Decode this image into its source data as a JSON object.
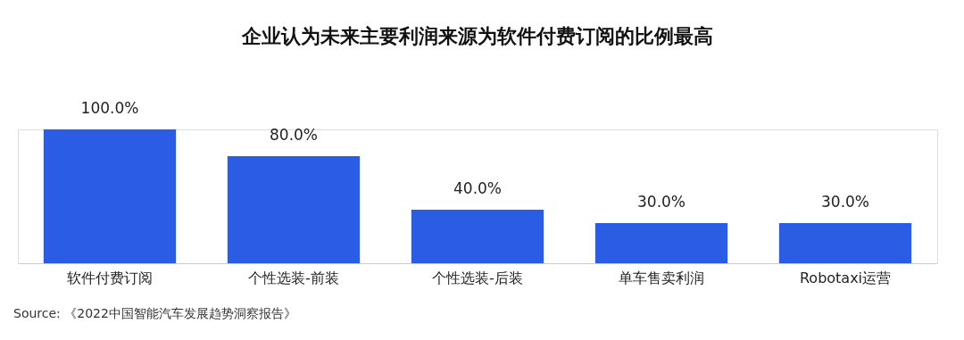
{
  "chart_data": {
    "type": "bar",
    "title": "企业认为未来主要利润来源为软件付费订阅的比例最高",
    "categories": [
      "软件付费订阅",
      "个性选装-前装",
      "个性选装-后装",
      "单车售卖利润",
      "Robotaxi运营"
    ],
    "values": [
      100,
      80,
      40,
      30,
      30
    ],
    "value_labels": [
      "100.0%",
      "80.0%",
      "40.0%",
      "30.0%",
      "30.0%"
    ],
    "color": "#2a5de3",
    "annotations": [
      "Source: 《2022中国智能汽车发展趋势洞察报告》"
    ]
  }
}
